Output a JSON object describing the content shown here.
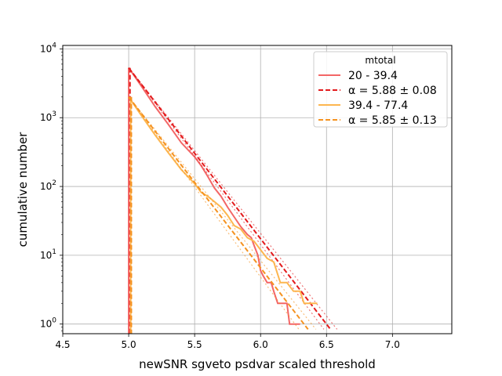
{
  "chart_data": {
    "type": "line",
    "xlabel": "newSNR sgveto psdvar scaled threshold",
    "ylabel": "cumulative number",
    "xlim": [
      4.5,
      7.45
    ],
    "ylim_log10": [
      -0.14,
      4.05
    ],
    "yscale": "log",
    "grid": true,
    "xticks": [
      4.5,
      5.0,
      5.5,
      6.0,
      6.5,
      7.0
    ],
    "xtick_labels": [
      "4.5",
      "5.0",
      "5.5",
      "6.0",
      "6.5",
      "7.0"
    ],
    "yticks": [
      1,
      10,
      100,
      1000,
      10000
    ],
    "ytick_labels": [
      {
        "base": "10",
        "exp": "0"
      },
      {
        "base": "10",
        "exp": "1"
      },
      {
        "base": "10",
        "exp": "2"
      },
      {
        "base": "10",
        "exp": "3"
      },
      {
        "base": "10",
        "exp": "4"
      }
    ],
    "legend": {
      "title": "mtotal",
      "placement": "upper right",
      "entries": [
        {
          "label": "20 - 39.4",
          "color": "#f36666",
          "style": "solid"
        },
        {
          "label": "α = 5.88 ± 0.08",
          "color": "#e31a1c",
          "style": "dashed"
        },
        {
          "label": "39.4 - 77.4",
          "color": "#fdb64f",
          "style": "solid"
        },
        {
          "label": "α = 5.85 ± 0.13",
          "color": "#f5921f",
          "style": "dashed"
        }
      ]
    },
    "series": [
      {
        "name": "20 - 39.4",
        "style": "solid",
        "color": "#f36666",
        "x": [
          5.0,
          5.1,
          5.2,
          5.3,
          5.4,
          5.5,
          5.55,
          5.6,
          5.65,
          5.7,
          5.75,
          5.8,
          5.85,
          5.9,
          5.93,
          5.95,
          5.98,
          6.0,
          6.02,
          6.05,
          6.08,
          6.1,
          6.13,
          6.16,
          6.2,
          6.22,
          6.25,
          6.28,
          6.3
        ],
        "y": [
          5300,
          2800,
          1450,
          800,
          430,
          270,
          200,
          140,
          95,
          72,
          50,
          36,
          26,
          20,
          18,
          14,
          10,
          6,
          5,
          4,
          4,
          3,
          2,
          2,
          2,
          1,
          1,
          1,
          1
        ]
      },
      {
        "name": "α = 5.88 ± 0.08",
        "style": "dashed",
        "color": "#e31a1c",
        "x": [
          5.0,
          6.53
        ],
        "y": [
          5300,
          0.84
        ]
      },
      {
        "name": "α = 5.88 ± 0.08",
        "style": "dotted",
        "color": "#e31a1c",
        "x": [
          5.0,
          6.48
        ],
        "y": [
          5300,
          0.84
        ]
      },
      {
        "name": "α = 5.88 ± 0.08",
        "style": "dotted",
        "color": "#e31a1c",
        "x": [
          5.0,
          6.58
        ],
        "y": [
          5300,
          0.84
        ]
      },
      {
        "name": "39.4 - 77.4",
        "style": "solid",
        "color": "#fdb64f",
        "x": [
          5.0,
          5.1,
          5.2,
          5.3,
          5.4,
          5.5,
          5.55,
          5.6,
          5.65,
          5.7,
          5.75,
          5.8,
          5.85,
          5.9,
          5.95,
          6.0,
          6.05,
          6.1,
          6.15,
          6.2,
          6.25,
          6.3,
          6.33,
          6.36,
          6.4,
          6.43
        ],
        "y": [
          2000,
          1050,
          560,
          310,
          175,
          110,
          82,
          72,
          60,
          50,
          38,
          27,
          24,
          18,
          16,
          12,
          9,
          8,
          4,
          4,
          3,
          3,
          2,
          2,
          2,
          2
        ]
      },
      {
        "name": "α = 5.85 ± 0.13",
        "style": "dashed",
        "color": "#f5921f",
        "x": [
          5.0,
          6.36
        ],
        "y": [
          2000,
          0.84
        ]
      },
      {
        "name": "α = 5.85 ± 0.13",
        "style": "dotted",
        "color": "#f5921f",
        "x": [
          5.0,
          6.29
        ],
        "y": [
          2000,
          0.84
        ]
      },
      {
        "name": "α = 5.85 ± 0.13",
        "style": "dotted",
        "color": "#f5921f",
        "x": [
          5.0,
          6.42
        ],
        "y": [
          2000,
          0.84
        ]
      }
    ],
    "vertical_lines": [
      {
        "x": 5.0,
        "color": "#f36666",
        "style": "solid"
      },
      {
        "x": 5.01,
        "color": "#e31a1c",
        "style": "dashed"
      },
      {
        "x": 5.015,
        "color": "#fdb64f",
        "style": "solid"
      },
      {
        "x": 5.02,
        "color": "#f5921f",
        "style": "dashed"
      }
    ]
  }
}
